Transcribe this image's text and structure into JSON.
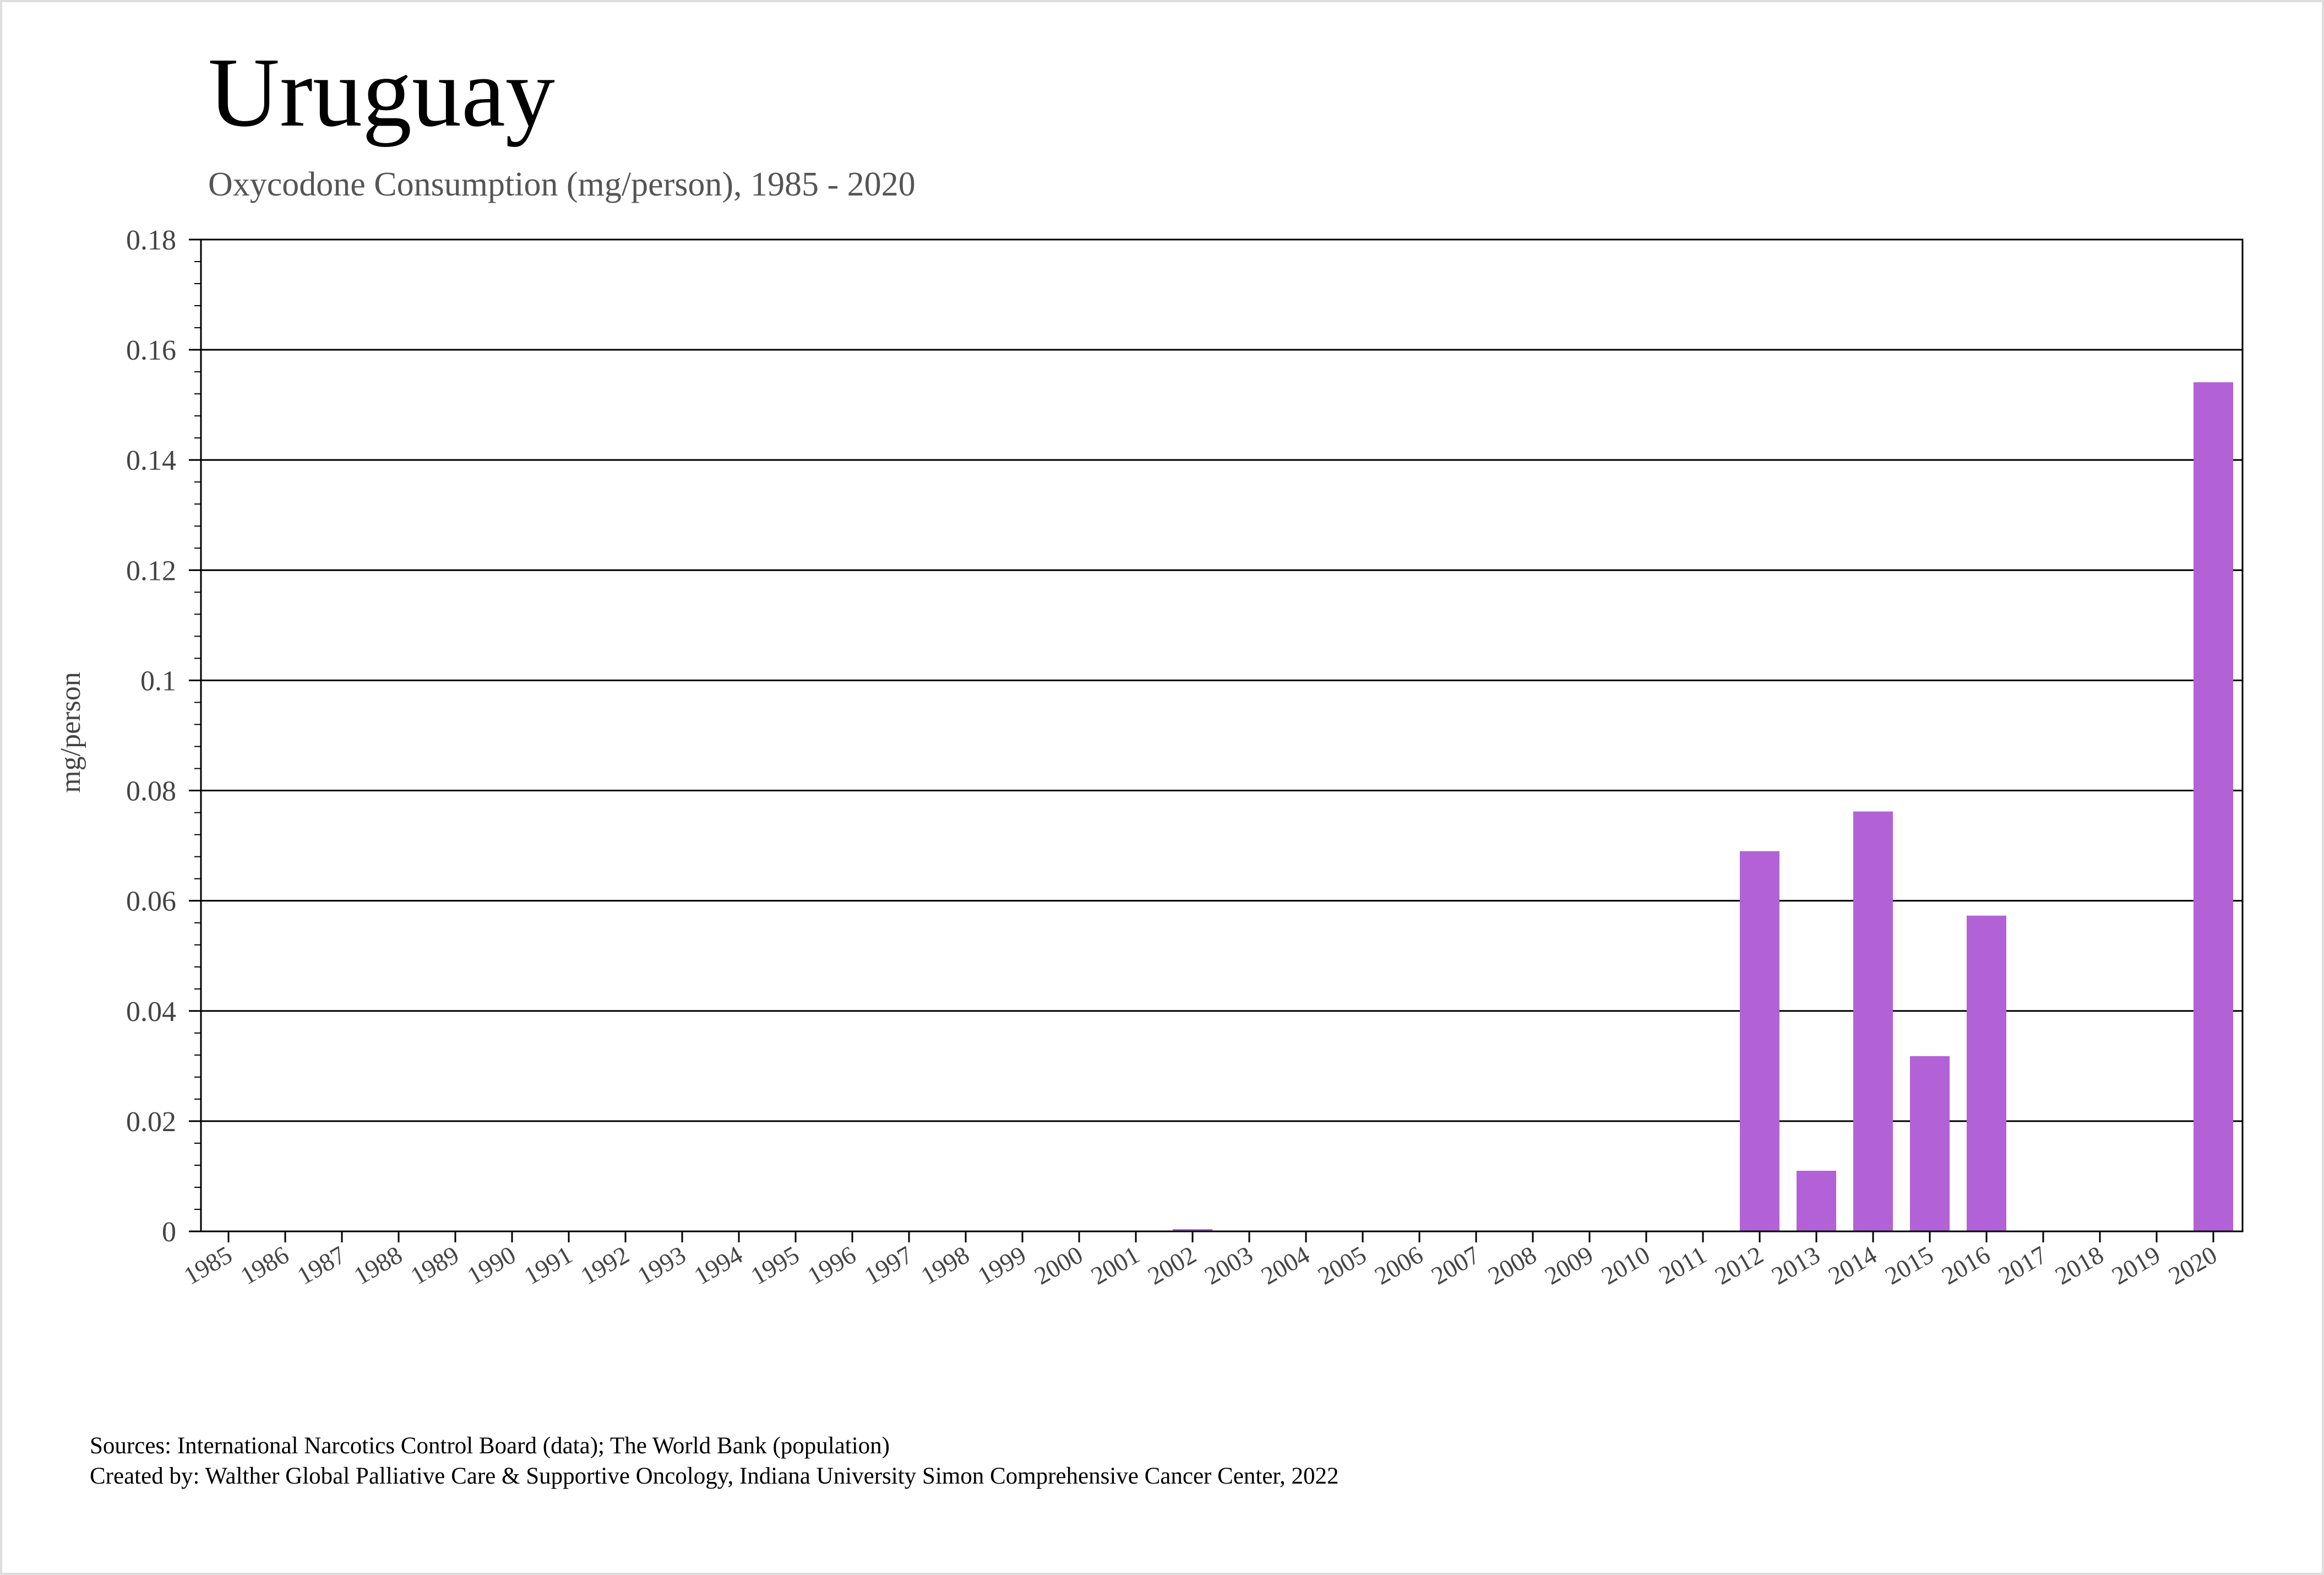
{
  "chart_data": {
    "type": "bar",
    "title": "Uruguay",
    "subtitle": "Oxycodone Consumption (mg/person), 1985 - 2020",
    "xlabel": "",
    "ylabel": "mg/person",
    "ylim": [
      0,
      0.18
    ],
    "y_ticks": [
      "0",
      "0.02",
      "0.04",
      "0.06",
      "0.08",
      "0.1",
      "0.12",
      "0.14",
      "0.16",
      "0.18"
    ],
    "grid": true,
    "bar_color": "#b262d6",
    "categories": [
      "1985",
      "1986",
      "1987",
      "1988",
      "1989",
      "1990",
      "1991",
      "1992",
      "1993",
      "1994",
      "1995",
      "1996",
      "1997",
      "1998",
      "1999",
      "2000",
      "2001",
      "2002",
      "2003",
      "2004",
      "2005",
      "2006",
      "2007",
      "2008",
      "2009",
      "2010",
      "2011",
      "2012",
      "2013",
      "2014",
      "2015",
      "2016",
      "2017",
      "2018",
      "2019",
      "2020"
    ],
    "values": [
      0,
      0,
      0,
      0,
      0,
      0,
      0,
      0,
      0,
      0,
      0,
      0,
      0,
      0,
      0,
      0,
      0,
      0.0004,
      0,
      0,
      0,
      0,
      0,
      0,
      0,
      0,
      0,
      0.069,
      0.011,
      0.0762,
      0.0318,
      0.0573,
      0,
      0,
      0,
      0.1541
    ]
  },
  "footer": {
    "sources": "Sources: International Narcotics Control Board (data); The World Bank (population)",
    "created_by": "Created by: Walther Global Palliative Care & Supportive Oncology, Indiana University Simon Comprehensive Cancer Center, 2022"
  }
}
